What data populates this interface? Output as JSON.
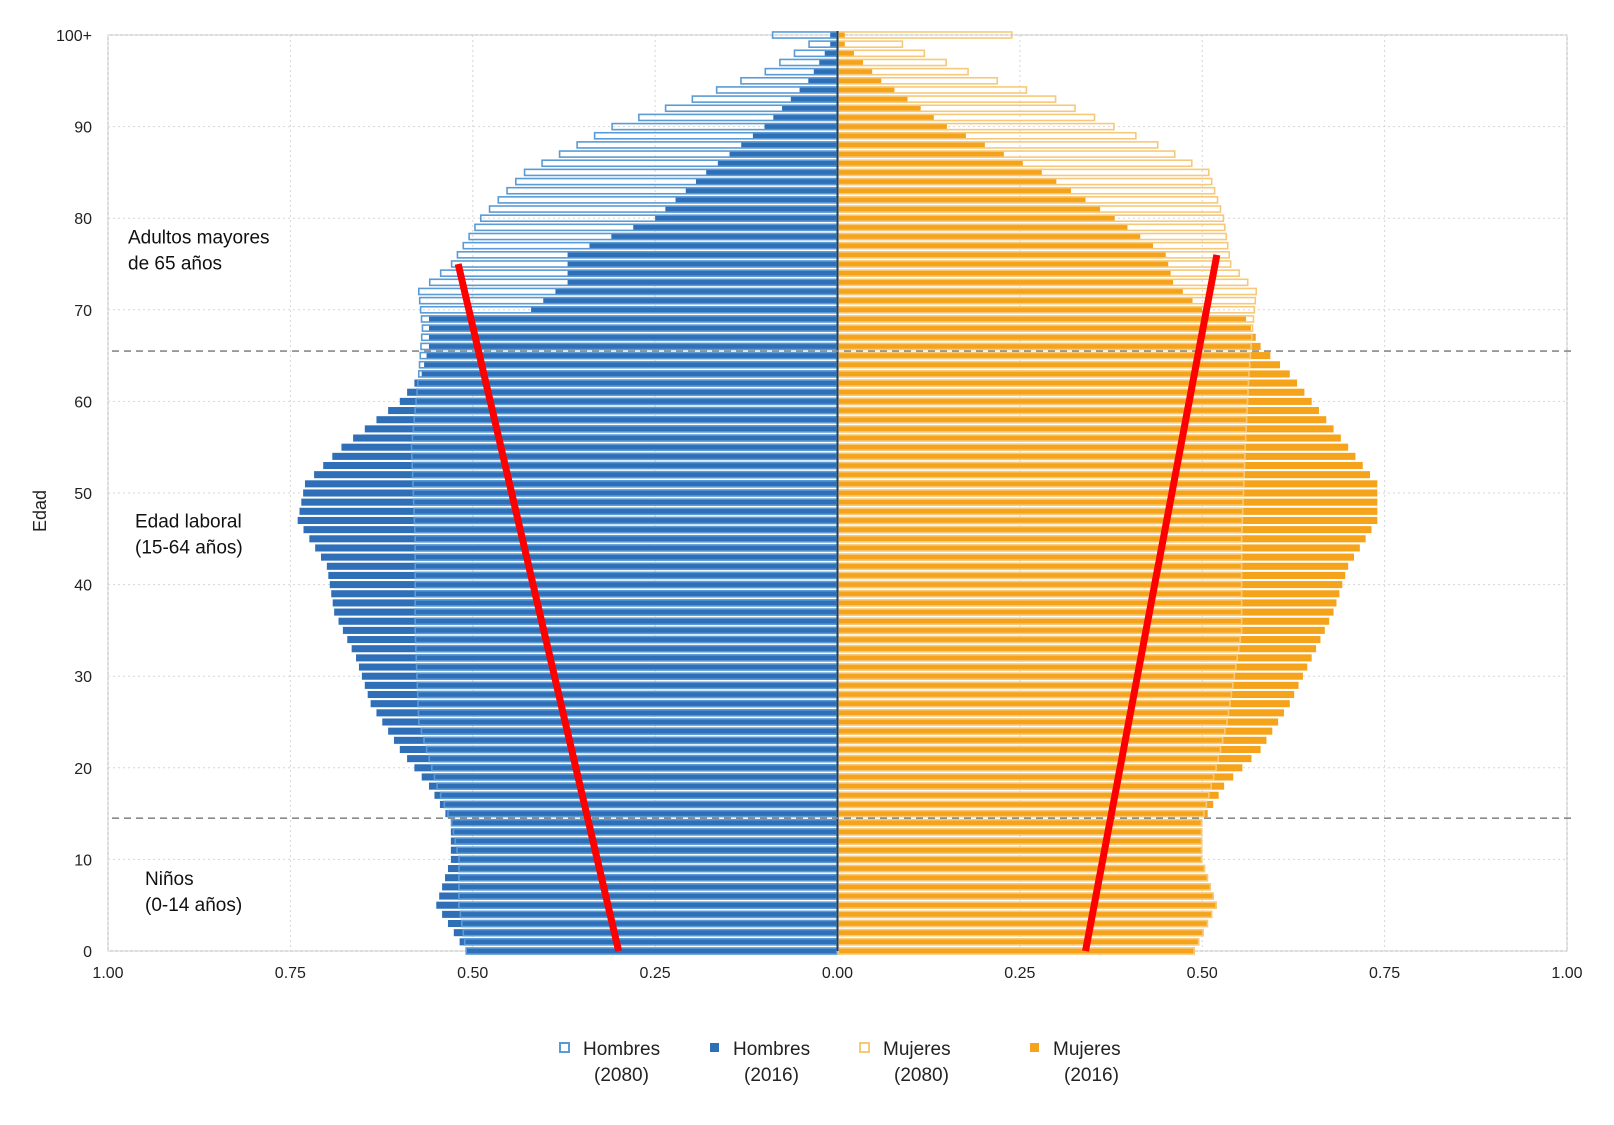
{
  "chart_data": {
    "type": "population_pyramid",
    "ylabel": "Edad",
    "xlim": [
      -1.0,
      1.0
    ],
    "ylim": [
      0,
      100
    ],
    "x_ticks": [
      -1.0,
      -0.75,
      -0.5,
      -0.25,
      0,
      0.25,
      0.5,
      0.75,
      1.0
    ],
    "x_tick_labels": [
      "1.00",
      "0.75",
      "0.50",
      "0.25",
      "0.00",
      "0.25",
      "0.50",
      "0.75",
      "1.00"
    ],
    "y_ticks": [
      0,
      10,
      20,
      30,
      40,
      50,
      60,
      70,
      80,
      90,
      100
    ],
    "y_tick_labels": [
      "0",
      "10",
      "20",
      "30",
      "40",
      "50",
      "60",
      "70",
      "80",
      "90",
      "100+"
    ],
    "grid": true,
    "age_group_dividers": [
      14,
      65
    ],
    "annotations": [
      {
        "line1": "Adultos mayores",
        "line2": "de 65 años",
        "age": 77
      },
      {
        "line1": "Edad laboral",
        "line2": "(15-64 años)",
        "age": 46
      },
      {
        "line1": "Niños",
        "line2": "(0-14 años)",
        "age": 7
      }
    ],
    "series": [
      {
        "name": "Hombres (2080)",
        "side": "left",
        "style": "outline",
        "color": "#5b9bd5",
        "knots": [
          [
            0,
            0.51
          ],
          [
            5,
            0.52
          ],
          [
            10,
            0.52
          ],
          [
            14,
            0.53
          ],
          [
            18,
            0.55
          ],
          [
            25,
            0.575
          ],
          [
            35,
            0.58
          ],
          [
            45,
            0.58
          ],
          [
            55,
            0.585
          ],
          [
            63,
            0.575
          ],
          [
            68,
            0.57
          ],
          [
            72,
            0.575
          ],
          [
            75,
            0.53
          ],
          [
            80,
            0.49
          ],
          [
            85,
            0.43
          ],
          [
            90,
            0.31
          ],
          [
            93,
            0.2
          ],
          [
            96,
            0.1
          ],
          [
            99,
            0.04
          ],
          [
            100,
            0.09
          ]
        ]
      },
      {
        "name": "Hombres (2016)",
        "side": "left",
        "style": "filled",
        "color": "#2e6fb7",
        "knots": [
          [
            0,
            0.51
          ],
          [
            5,
            0.55
          ],
          [
            10,
            0.53
          ],
          [
            14,
            0.53
          ],
          [
            18,
            0.56
          ],
          [
            22,
            0.6
          ],
          [
            27,
            0.64
          ],
          [
            32,
            0.66
          ],
          [
            37,
            0.69
          ],
          [
            42,
            0.7
          ],
          [
            47,
            0.74
          ],
          [
            51,
            0.73
          ],
          [
            55,
            0.68
          ],
          [
            60,
            0.6
          ],
          [
            63,
            0.57
          ],
          [
            66,
            0.56
          ],
          [
            69,
            0.56
          ],
          [
            70,
            0.42
          ],
          [
            73,
            0.37
          ],
          [
            76,
            0.37
          ],
          [
            80,
            0.25
          ],
          [
            85,
            0.18
          ],
          [
            90,
            0.1
          ],
          [
            95,
            0.04
          ],
          [
            99,
            0.01
          ],
          [
            100,
            0.01
          ]
        ]
      },
      {
        "name": "Mujeres (2080)",
        "side": "right",
        "style": "outline",
        "color": "#f6c97a",
        "knots": [
          [
            0,
            0.49
          ],
          [
            5,
            0.52
          ],
          [
            10,
            0.5
          ],
          [
            14,
            0.5
          ],
          [
            20,
            0.52
          ],
          [
            25,
            0.535
          ],
          [
            35,
            0.555
          ],
          [
            45,
            0.555
          ],
          [
            55,
            0.56
          ],
          [
            63,
            0.565
          ],
          [
            68,
            0.57
          ],
          [
            72,
            0.575
          ],
          [
            75,
            0.54
          ],
          [
            80,
            0.53
          ],
          [
            85,
            0.51
          ],
          [
            88,
            0.44
          ],
          [
            90,
            0.38
          ],
          [
            93,
            0.3
          ],
          [
            96,
            0.18
          ],
          [
            99,
            0.09
          ],
          [
            100,
            0.24
          ]
        ]
      },
      {
        "name": "Mujeres (2016)",
        "side": "right",
        "style": "filled",
        "color": "#f5a31a",
        "knots": [
          [
            0,
            0.49
          ],
          [
            5,
            0.52
          ],
          [
            10,
            0.5
          ],
          [
            14,
            0.5
          ],
          [
            18,
            0.53
          ],
          [
            22,
            0.58
          ],
          [
            27,
            0.62
          ],
          [
            32,
            0.65
          ],
          [
            37,
            0.68
          ],
          [
            42,
            0.7
          ],
          [
            47,
            0.74
          ],
          [
            51,
            0.74
          ],
          [
            55,
            0.7
          ],
          [
            60,
            0.65
          ],
          [
            63,
            0.62
          ],
          [
            66,
            0.58
          ],
          [
            69,
            0.56
          ],
          [
            70,
            0.5
          ],
          [
            73,
            0.46
          ],
          [
            76,
            0.45
          ],
          [
            80,
            0.38
          ],
          [
            85,
            0.28
          ],
          [
            90,
            0.15
          ],
          [
            95,
            0.06
          ],
          [
            99,
            0.01
          ],
          [
            100,
            0.01
          ]
        ]
      }
    ],
    "trend_lines": [
      {
        "color": "#ff0000",
        "from": {
          "x": -0.3,
          "age": 0
        },
        "to": {
          "x": -0.52,
          "age": 75
        }
      },
      {
        "color": "#ff0000",
        "from": {
          "x": 0.34,
          "age": 0
        },
        "to": {
          "x": 0.52,
          "age": 76
        }
      }
    ],
    "legend": [
      {
        "line1": "Hombres",
        "line2": "(2080)",
        "color": "#5b9bd5",
        "style": "outline"
      },
      {
        "line1": "Hombres",
        "line2": "(2016)",
        "color": "#2e6fb7",
        "style": "filled"
      },
      {
        "line1": "Mujeres",
        "line2": "(2080)",
        "color": "#f6c97a",
        "style": "outline"
      },
      {
        "line1": "Mujeres",
        "line2": "(2016)",
        "color": "#f5a31a",
        "style": "filled"
      }
    ],
    "legend_position": "bottom"
  }
}
